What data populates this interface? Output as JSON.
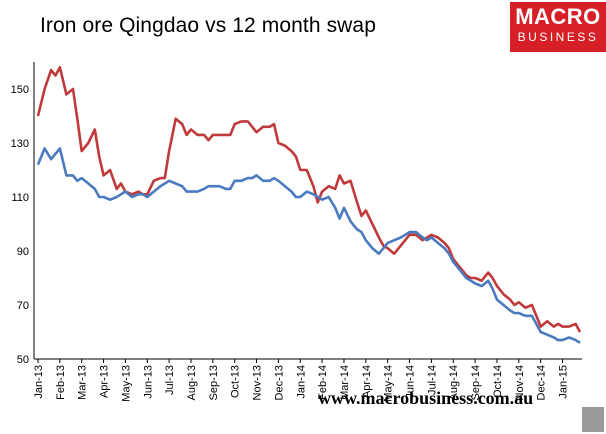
{
  "header": {
    "title": "Iron ore Qingdao vs 12 month swap"
  },
  "logo": {
    "line1": "MACRO",
    "line2": "BUSINESS",
    "color": "#d61f26"
  },
  "footer": {
    "url": "www.macrobusiness.com.au"
  },
  "chart_data": {
    "type": "line",
    "title": "Iron ore Qingdao vs 12 month swap",
    "xlabel": "",
    "ylabel": "",
    "ylim": [
      50,
      160
    ],
    "yticks": [
      50,
      70,
      90,
      110,
      130,
      150
    ],
    "grid": false,
    "categories": [
      "Jan-13",
      "Feb-13",
      "Mar-13",
      "Apr-13",
      "May-13",
      "Jun-13",
      "Jul-13",
      "Aug-13",
      "Sep-13",
      "Oct-13",
      "Nov-13",
      "Dec-13",
      "Jan-14",
      "Feb-14",
      "Mar-14",
      "Apr-14",
      "May-14",
      "Jun-14",
      "Jul-14",
      "Aug-14",
      "Sep-14",
      "Oct-14",
      "Nov-14",
      "Dec-14",
      "Jan-15"
    ],
    "x": [
      0,
      0.3,
      0.6,
      0.8,
      1,
      1.3,
      1.6,
      1.8,
      2,
      2.3,
      2.6,
      2.8,
      3,
      3.3,
      3.6,
      3.8,
      4,
      4.3,
      4.6,
      4.8,
      5,
      5.3,
      5.6,
      5.8,
      6,
      6.3,
      6.6,
      6.8,
      7,
      7.3,
      7.6,
      7.8,
      8,
      8.3,
      8.6,
      8.8,
      9,
      9.3,
      9.6,
      9.8,
      10,
      10.3,
      10.6,
      10.8,
      11,
      11.3,
      11.6,
      11.8,
      12,
      12.3,
      12.6,
      12.8,
      13,
      13.3,
      13.6,
      13.8,
      14,
      14.3,
      14.6,
      14.8,
      15,
      15.3,
      15.6,
      15.8,
      16,
      16.3,
      16.6,
      16.8,
      17,
      17.3,
      17.6,
      17.8,
      18,
      18.3,
      18.6,
      18.8,
      19,
      19.3,
      19.6,
      19.8,
      20,
      20.3,
      20.6,
      20.8,
      21,
      21.3,
      21.6,
      21.8,
      22,
      22.3,
      22.6,
      22.8,
      23,
      23.3,
      23.6,
      23.8,
      24,
      24.3,
      24.6,
      24.8
    ],
    "series": [
      {
        "name": "Iron ore Qingdao",
        "color": "#c0393b",
        "values": [
          140,
          150,
          157,
          155,
          158,
          148,
          150,
          139,
          127,
          130,
          135,
          125,
          118,
          120,
          113,
          115,
          112,
          111,
          112,
          111,
          111,
          116,
          117,
          117,
          127,
          139,
          137,
          133,
          135,
          133,
          133,
          131,
          133,
          133,
          133,
          133,
          137,
          138,
          138,
          136,
          134,
          136,
          136,
          137,
          130,
          129,
          127,
          125,
          120,
          120,
          114,
          108,
          112,
          114,
          113,
          118,
          115,
          116,
          108,
          103,
          105,
          100,
          95,
          92,
          91,
          89,
          92,
          94,
          96,
          96,
          94,
          95,
          96,
          95,
          93,
          91,
          87,
          84,
          81,
          80,
          80,
          79,
          82,
          80,
          77,
          74,
          72,
          70,
          71,
          69,
          70,
          66,
          62,
          64,
          62,
          63,
          62,
          62,
          63,
          60
        ]
      },
      {
        "name": "12 month swap",
        "color": "#4a7abf",
        "values": [
          122,
          128,
          124,
          126,
          128,
          118,
          118,
          116,
          117,
          115,
          113,
          110,
          110,
          109,
          110,
          111,
          112,
          110,
          111,
          111,
          110,
          112,
          114,
          115,
          116,
          115,
          114,
          112,
          112,
          112,
          113,
          114,
          114,
          114,
          113,
          113,
          116,
          116,
          117,
          117,
          118,
          116,
          116,
          117,
          116,
          114,
          112,
          110,
          110,
          112,
          111,
          110,
          109,
          110,
          106,
          102,
          106,
          101,
          98,
          97,
          94,
          91,
          89,
          91,
          93,
          94,
          95,
          96,
          97,
          97,
          95,
          94,
          95,
          93,
          91,
          89,
          86,
          83,
          80,
          79,
          78,
          77,
          79,
          76,
          72,
          70,
          68,
          67,
          67,
          66,
          66,
          63,
          60,
          59,
          58,
          57,
          57,
          58,
          57,
          56
        ]
      }
    ]
  }
}
